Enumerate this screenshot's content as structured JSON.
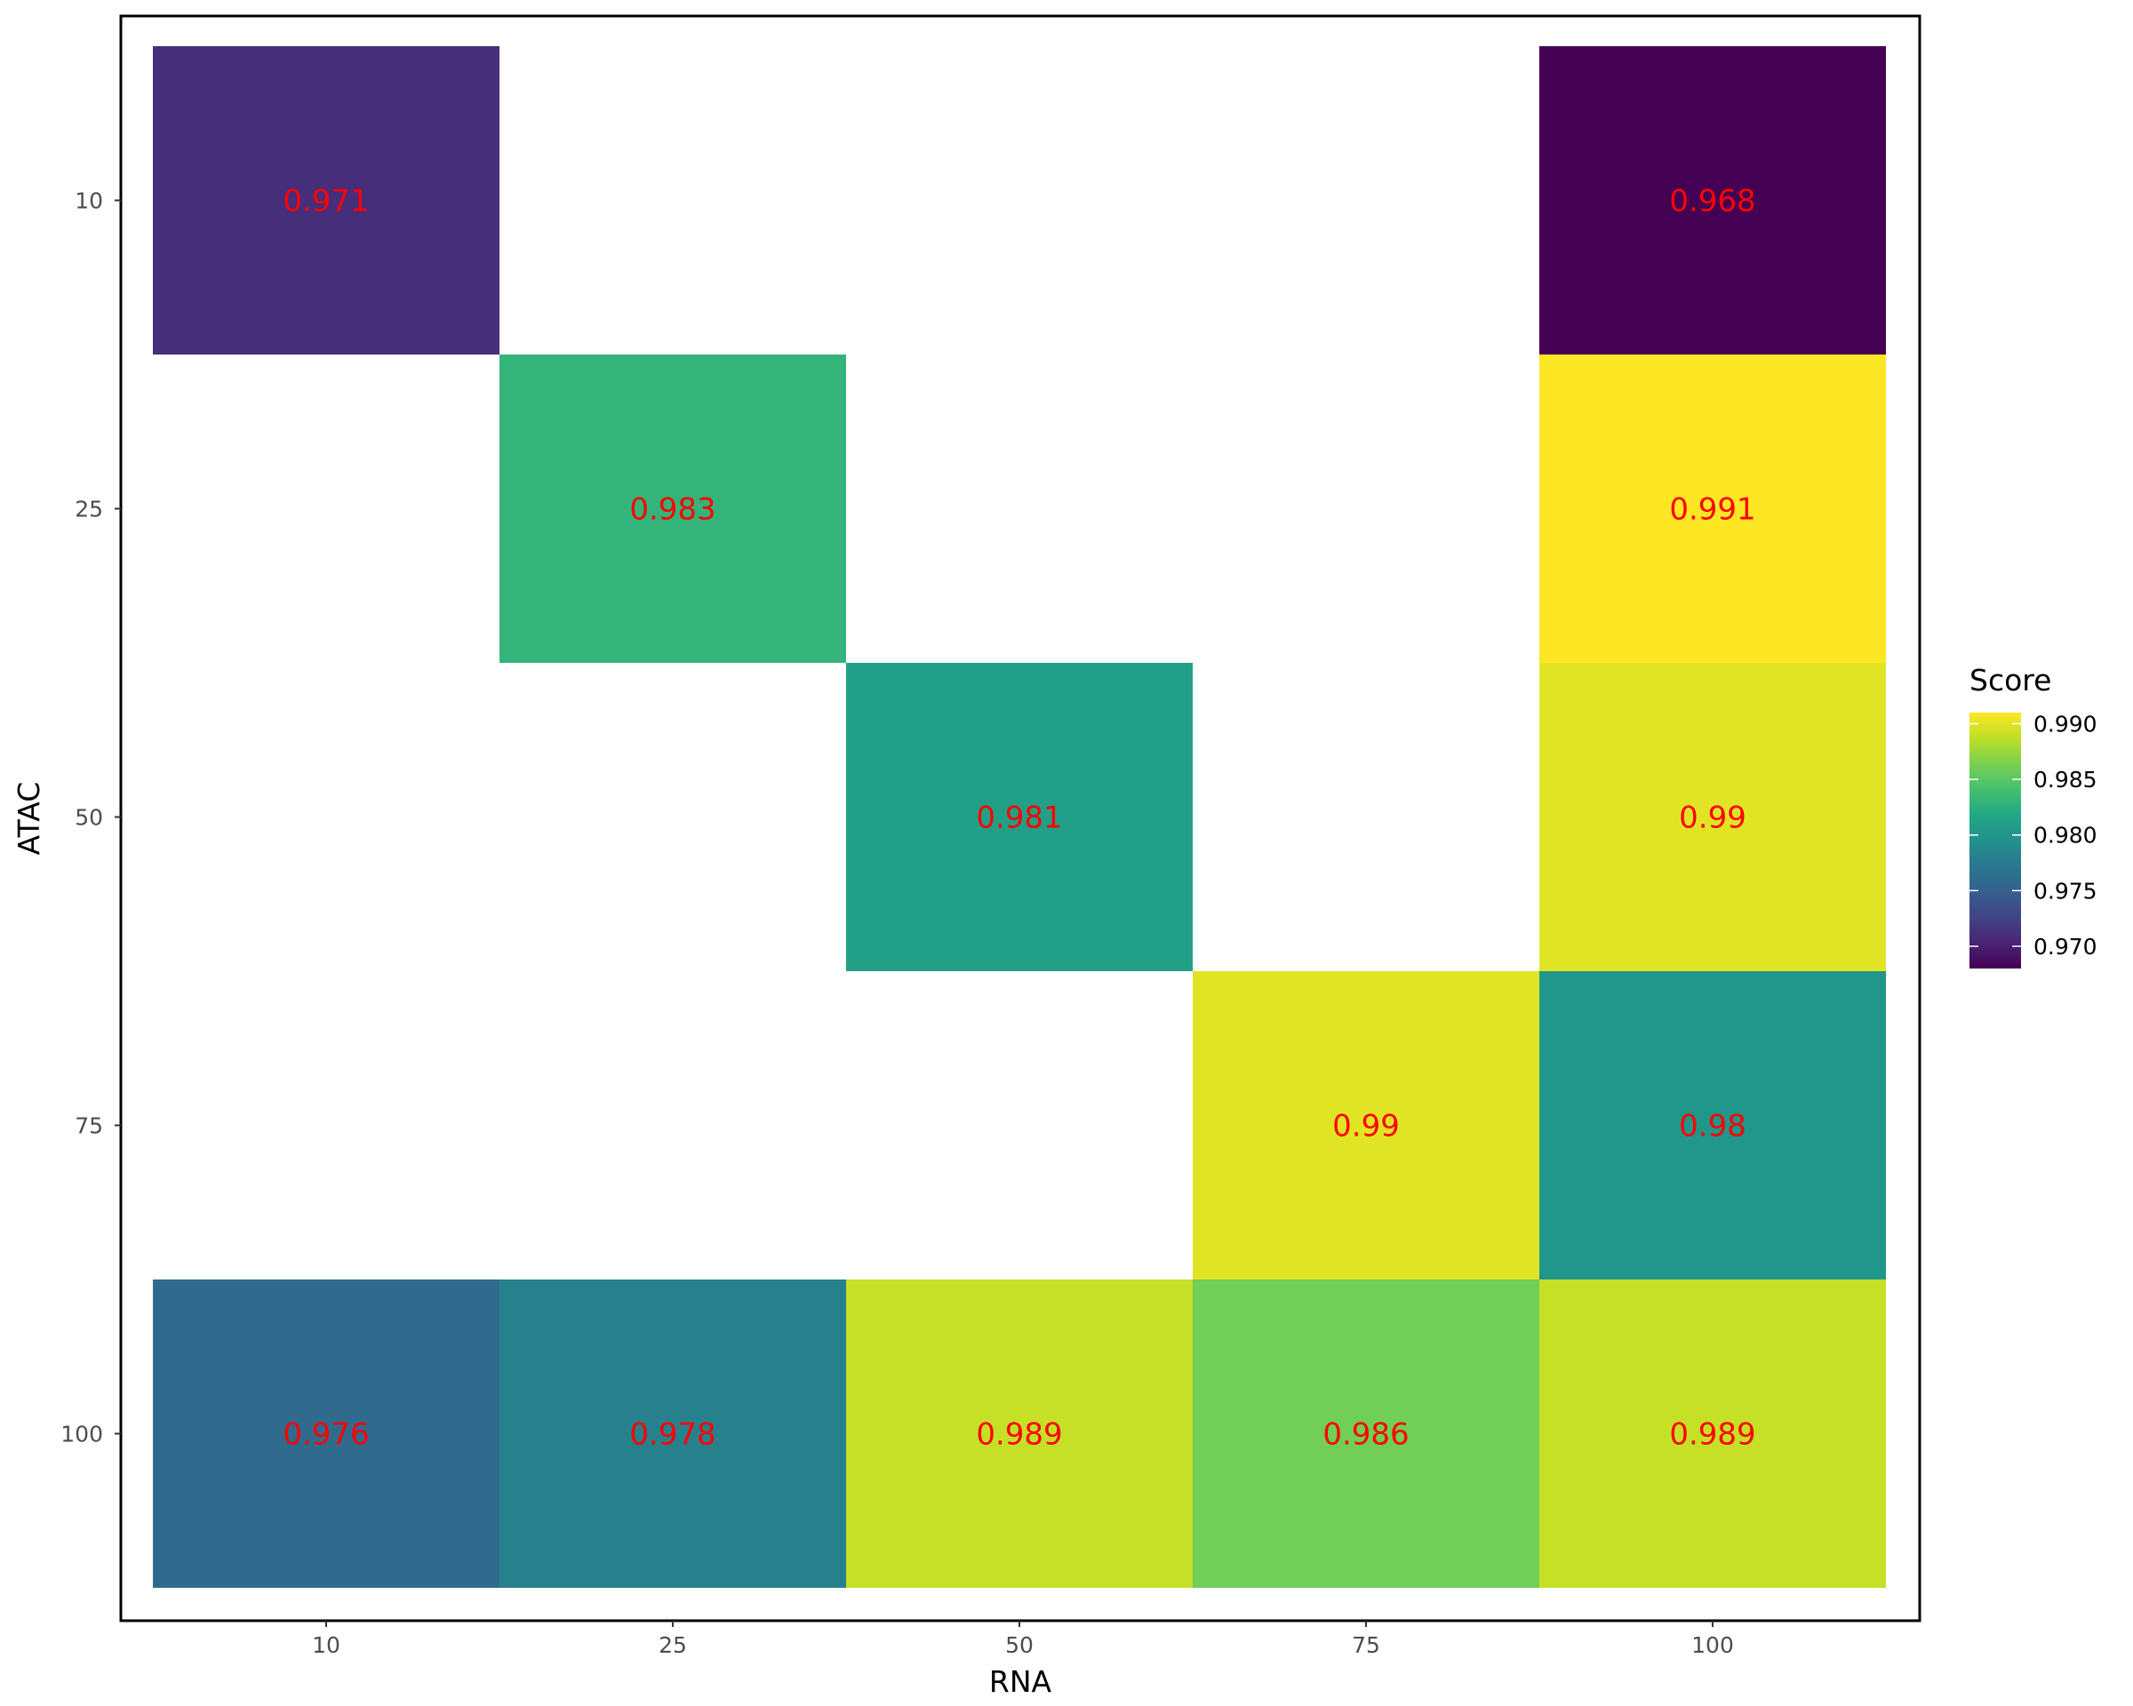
{
  "chart_data": {
    "type": "heatmap",
    "xlabel": "RNA",
    "ylabel": "ATAC",
    "x_categories": [
      "10",
      "25",
      "50",
      "75",
      "100"
    ],
    "y_categories": [
      "10",
      "25",
      "50",
      "75",
      "100"
    ],
    "cells": [
      {
        "x": "10",
        "y": "10",
        "value": 0.971,
        "label": "0.971"
      },
      {
        "x": "100",
        "y": "10",
        "value": 0.968,
        "label": "0.968"
      },
      {
        "x": "25",
        "y": "25",
        "value": 0.983,
        "label": "0.983"
      },
      {
        "x": "100",
        "y": "25",
        "value": 0.991,
        "label": "0.991"
      },
      {
        "x": "50",
        "y": "50",
        "value": 0.981,
        "label": "0.981"
      },
      {
        "x": "100",
        "y": "50",
        "value": 0.99,
        "label": "0.99"
      },
      {
        "x": "75",
        "y": "75",
        "value": 0.99,
        "label": "0.99"
      },
      {
        "x": "100",
        "y": "75",
        "value": 0.98,
        "label": "0.98"
      },
      {
        "x": "10",
        "y": "100",
        "value": 0.976,
        "label": "0.976"
      },
      {
        "x": "25",
        "y": "100",
        "value": 0.978,
        "label": "0.978"
      },
      {
        "x": "50",
        "y": "100",
        "value": 0.989,
        "label": "0.989"
      },
      {
        "x": "75",
        "y": "100",
        "value": 0.986,
        "label": "0.986"
      },
      {
        "x": "100",
        "y": "100",
        "value": 0.989,
        "label": "0.989"
      }
    ],
    "colorscale": "viridis",
    "legend": {
      "title": "Score",
      "placement": "right",
      "range": [
        0.968,
        0.991
      ],
      "ticks": [
        0.97,
        0.975,
        0.98,
        0.985,
        0.99
      ],
      "tick_labels": [
        "0.970",
        "0.975",
        "0.980",
        "0.985",
        "0.990"
      ]
    },
    "label_color": "#ff0000",
    "grid": false
  }
}
